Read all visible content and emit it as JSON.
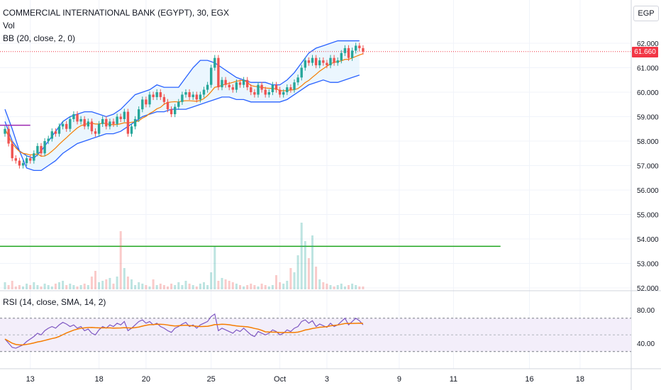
{
  "header": {
    "symbol_title": "COMMERCIAL INTERNATIONAL BANK (EGYPT), 30, EGX",
    "vol_label": "Vol",
    "bb_label": "BB (20, close, 2, 0)",
    "rsi_label": "RSI (14, close, SMA, 14, 2)",
    "currency": "EGP"
  },
  "last_price_label": "61.660",
  "colors": {
    "up": "#26a69a",
    "down": "#ef5350",
    "bb_band": "#2962ff",
    "bb_basis": "#f57c00",
    "bb_fill": "#e3f2fd",
    "rsi_line": "#7e57c2",
    "rsi_ma": "#f57c00",
    "rsi_fill": "#f3eefa",
    "hline_green": "#1ea51e",
    "hline_purple": "#9c27b0",
    "last_price": "#f23645"
  },
  "chart_data": {
    "type": "candlestick",
    "price_axis_ticks": [
      62,
      61,
      60,
      59,
      58,
      57,
      56,
      55,
      54,
      53,
      52
    ],
    "price_axis_labels": [
      "62.000",
      "61.000",
      "60.000",
      "59.000",
      "58.000",
      "57.000",
      "56.000",
      "55.000",
      "54.000",
      "53.000",
      "52.000"
    ],
    "rsi_axis_ticks": [
      80,
      40
    ],
    "rsi_axis_labels": [
      "80.00",
      "40.00"
    ],
    "rsi_band": [
      70,
      30
    ],
    "x_ticks": [
      {
        "label": "13",
        "idx": 7
      },
      {
        "label": "18",
        "idx": 26
      },
      {
        "label": "20",
        "idx": 39
      },
      {
        "label": "25",
        "idx": 57
      },
      {
        "label": "Oct",
        "idx": 76
      },
      {
        "label": "3",
        "idx": 89
      },
      {
        "label": "9",
        "idx": 109
      },
      {
        "label": "11",
        "idx": 124
      },
      {
        "label": "16",
        "idx": 145
      },
      {
        "label": "18",
        "idx": 159
      }
    ],
    "horizontal_lines": [
      {
        "price": 53.7,
        "color": "green",
        "from_idx": 0,
        "to_idx": 137
      },
      {
        "price": 58.65,
        "color": "purple",
        "from_idx": 0,
        "to_idx": 7
      },
      {
        "price": 61.66,
        "color": "last",
        "from_idx": 0,
        "to_idx": 180
      }
    ],
    "close": [
      58.5,
      57.9,
      57.3,
      57.2,
      57.0,
      57.1,
      57.3,
      57.2,
      57.5,
      57.8,
      57.5,
      58.0,
      58.1,
      58.4,
      58.3,
      58.6,
      58.7,
      58.5,
      58.9,
      59.1,
      58.8,
      58.9,
      58.6,
      58.8,
      58.4,
      58.3,
      58.7,
      58.9,
      58.6,
      58.8,
      58.7,
      59.0,
      58.9,
      59.2,
      58.3,
      58.6,
      58.9,
      59.3,
      59.7,
      59.5,
      59.9,
      59.8,
      60.0,
      59.8,
      59.6,
      59.3,
      59.1,
      59.4,
      59.6,
      59.9,
      60.0,
      59.8,
      59.9,
      59.7,
      59.9,
      60.1,
      60.3,
      61.0,
      61.4,
      60.2,
      60.5,
      60.3,
      60.2,
      60.1,
      60.4,
      60.3,
      60.5,
      60.2,
      60.0,
      59.9,
      60.3,
      60.1,
      59.9,
      60.0,
      60.3,
      60.1,
      59.9,
      60.0,
      60.2,
      60.1,
      60.4,
      60.6,
      61.0,
      61.3,
      61.2,
      61.4,
      61.1,
      61.3,
      61.2,
      61.1,
      61.4,
      61.2,
      61.3,
      61.6,
      61.8,
      61.4,
      61.7,
      61.9,
      61.8,
      61.66
    ],
    "open": [
      58.3,
      58.5,
      57.9,
      57.3,
      57.2,
      57.0,
      57.1,
      57.3,
      57.2,
      57.5,
      57.8,
      57.5,
      58.0,
      58.1,
      58.4,
      58.3,
      58.6,
      58.7,
      58.5,
      58.9,
      59.1,
      58.8,
      58.9,
      58.6,
      58.8,
      58.4,
      58.3,
      58.7,
      58.9,
      58.6,
      58.8,
      58.7,
      59.0,
      58.9,
      59.2,
      58.3,
      58.6,
      58.9,
      59.3,
      59.7,
      59.5,
      59.9,
      59.8,
      60.0,
      59.8,
      59.6,
      59.3,
      59.1,
      59.4,
      59.6,
      59.9,
      60.0,
      59.8,
      59.9,
      59.7,
      59.9,
      60.1,
      60.3,
      61.0,
      61.4,
      60.2,
      60.5,
      60.3,
      60.2,
      60.1,
      60.4,
      60.3,
      60.5,
      60.2,
      60.0,
      59.9,
      60.3,
      60.1,
      59.9,
      60.0,
      60.3,
      60.1,
      59.9,
      60.0,
      60.2,
      60.1,
      60.4,
      60.6,
      61.0,
      61.3,
      61.2,
      61.4,
      61.1,
      61.3,
      61.2,
      61.1,
      61.4,
      61.2,
      61.3,
      61.6,
      61.8,
      61.4,
      61.7,
      61.9,
      61.8
    ],
    "volume": [
      0.5,
      0.3,
      0.6,
      0.2,
      0.3,
      0.2,
      0.4,
      0.3,
      0.5,
      0.3,
      0.2,
      0.4,
      0.3,
      0.2,
      0.4,
      0.5,
      0.6,
      0.3,
      0.4,
      0.3,
      0.2,
      0.3,
      0.4,
      0.3,
      0.9,
      1.3,
      0.5,
      0.6,
      0.7,
      0.8,
      0.4,
      0.9,
      4.1,
      1.5,
      0.9,
      0.7,
      0.3,
      0.5,
      0.4,
      0.3,
      0.2,
      0.7,
      0.3,
      0.4,
      0.3,
      0.2,
      0.4,
      0.3,
      0.5,
      0.3,
      0.6,
      0.4,
      0.3,
      0.2,
      0.4,
      0.5,
      0.3,
      1.2,
      3.0,
      0.6,
      0.8,
      0.7,
      0.6,
      0.5,
      0.4,
      0.3,
      0.2,
      0.3,
      0.4,
      0.3,
      0.2,
      0.4,
      0.3,
      0.2,
      0.3,
      1.0,
      0.5,
      0.4,
      0.6,
      1.5,
      1.2,
      2.4,
      4.7,
      3.4,
      2.2,
      3.8,
      1.6,
      0.7,
      0.5,
      0.4,
      0.3,
      0.2,
      0.3,
      0.4,
      0.2,
      0.3,
      0.4,
      0.3,
      0.2,
      0.2
    ],
    "rsi": [
      45,
      40,
      35,
      34,
      36,
      38,
      42,
      45,
      48,
      52,
      50,
      55,
      58,
      60,
      58,
      62,
      65,
      63,
      60,
      62,
      58,
      60,
      55,
      57,
      52,
      50,
      56,
      60,
      58,
      62,
      60,
      64,
      62,
      66,
      55,
      58,
      62,
      66,
      68,
      64,
      66,
      62,
      64,
      60,
      58,
      55,
      53,
      58,
      60,
      63,
      65,
      60,
      62,
      58,
      62,
      64,
      66,
      72,
      75,
      55,
      58,
      56,
      54,
      52,
      56,
      54,
      58,
      54,
      50,
      48,
      54,
      52,
      50,
      52,
      56,
      54,
      50,
      52,
      56,
      54,
      58,
      60,
      66,
      68,
      64,
      67,
      60,
      63,
      61,
      59,
      64,
      60,
      62,
      66,
      70,
      62,
      66,
      70,
      67,
      62
    ],
    "bb_upper_levels": [
      58.8,
      58.0,
      57.6,
      57.4,
      57.3,
      57.6,
      58.0,
      58.4,
      58.8,
      59.0,
      59.1,
      59.2,
      59.2,
      59.1,
      59.0,
      59.1,
      59.3,
      59.6,
      59.9,
      60.0,
      60.1,
      60.3,
      60.2,
      60.2,
      60.2,
      60.6,
      61.0,
      61.3,
      61.3,
      61.2,
      61.0,
      60.8,
      60.6,
      60.5,
      60.4,
      60.4,
      60.4,
      60.3,
      60.3,
      60.5,
      60.8,
      61.2,
      61.6,
      61.8,
      61.9,
      62.0,
      62.1,
      62.1,
      62.1,
      62.1
    ],
    "bb_lower_levels": [
      59.3,
      58.5,
      57.6,
      56.9,
      56.8,
      56.8,
      57.0,
      57.2,
      57.5,
      57.7,
      57.9,
      58.0,
      58.1,
      58.2,
      58.3,
      58.3,
      58.4,
      58.6,
      58.8,
      59.0,
      59.1,
      59.2,
      59.2,
      59.3,
      59.3,
      59.3,
      59.4,
      59.5,
      59.6,
      59.7,
      59.8,
      59.8,
      59.7,
      59.7,
      59.6,
      59.6,
      59.6,
      59.6,
      59.6,
      59.7,
      59.9,
      60.1,
      60.3,
      60.4,
      60.5,
      60.4,
      60.4,
      60.5,
      60.6,
      60.7
    ]
  }
}
